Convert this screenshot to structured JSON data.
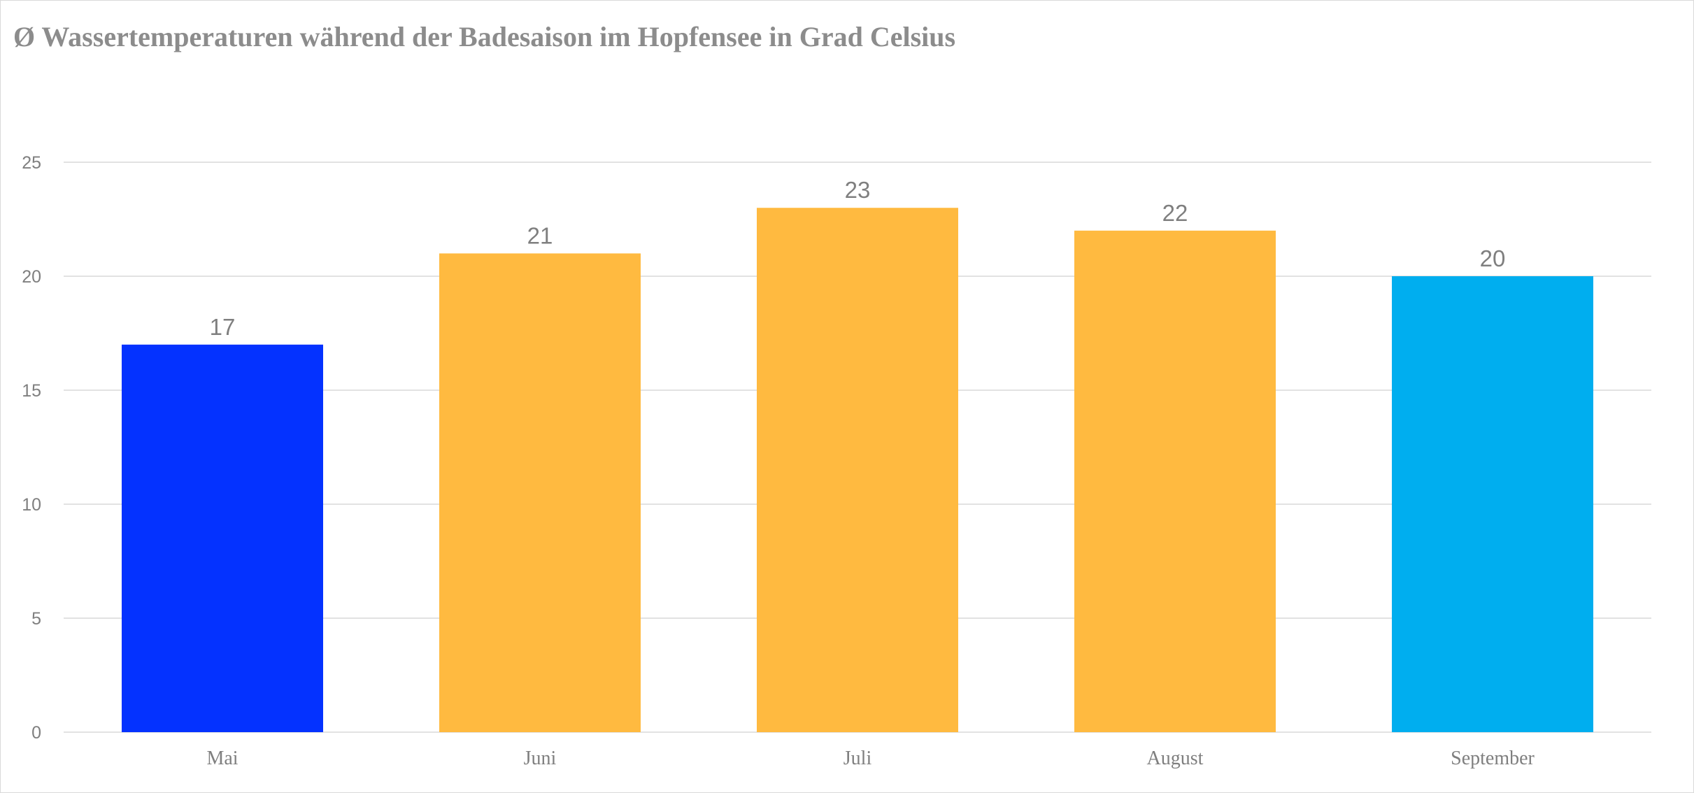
{
  "chart_data": {
    "type": "bar",
    "title": "Ø Wassertemperaturen während der Badesaison im Hopfensee in Grad Celsius",
    "categories": [
      "Mai",
      "Juni",
      "Juli",
      "August",
      "September"
    ],
    "values": [
      17,
      21,
      23,
      22,
      20
    ],
    "bar_colors": [
      "#0432FF",
      "#FFBA40",
      "#FFBA40",
      "#FFBA40",
      "#00AEEF"
    ],
    "xlabel": "",
    "ylabel": "",
    "ylim": [
      0,
      25
    ],
    "yticks": [
      0,
      5,
      10,
      15,
      20,
      25
    ],
    "grid": true,
    "legend": false,
    "data_labels": true
  },
  "colors": {
    "text": "#7F7F7F",
    "gridline": "#D9D9D9",
    "title": "#8C8C8C"
  }
}
